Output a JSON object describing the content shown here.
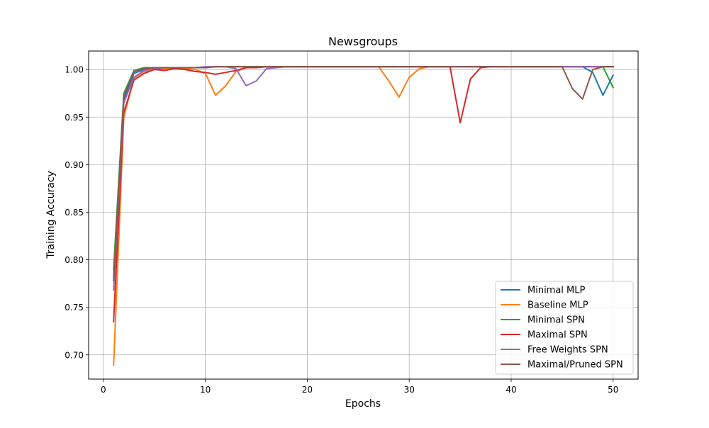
{
  "chart_data": {
    "type": "line",
    "title": "Newsgroups",
    "xlabel": "Epochs",
    "ylabel": "Training Accuracy",
    "xlim": [
      -1.45,
      52.45
    ],
    "ylim": [
      0.6745,
      1.0195
    ],
    "xticks": [
      0,
      10,
      20,
      30,
      40,
      50
    ],
    "yticks": [
      0.7,
      0.75,
      0.8,
      0.85,
      0.9,
      0.95,
      1.0
    ],
    "xtick_labels": [
      "0",
      "10",
      "20",
      "30",
      "40",
      "50"
    ],
    "ytick_labels": [
      "0.70",
      "0.75",
      "0.80",
      "0.85",
      "0.90",
      "0.95",
      "1.00"
    ],
    "grid": true,
    "legend_position": "lower right",
    "x": [
      1,
      2,
      3,
      4,
      5,
      6,
      7,
      8,
      9,
      10,
      11,
      12,
      13,
      14,
      15,
      16,
      17,
      18,
      19,
      20,
      21,
      22,
      23,
      24,
      25,
      26,
      27,
      28,
      29,
      30,
      31,
      32,
      33,
      34,
      35,
      36,
      37,
      38,
      39,
      40,
      41,
      42,
      43,
      44,
      45,
      46,
      47,
      48,
      49,
      50
    ],
    "series": [
      {
        "name": "Minimal MLP",
        "color": "#1f77b4",
        "values": [
          0.782,
          0.968,
          0.996,
          1.0,
          1.001,
          1.002,
          1.002,
          1.002,
          1.002,
          1.002,
          1.003,
          1.003,
          1.003,
          1.003,
          1.003,
          1.003,
          1.003,
          1.003,
          1.003,
          1.003,
          1.003,
          1.003,
          1.003,
          1.003,
          1.003,
          1.003,
          1.003,
          1.003,
          1.003,
          1.003,
          1.003,
          1.003,
          1.003,
          1.003,
          1.003,
          1.003,
          1.003,
          1.003,
          1.003,
          1.003,
          1.003,
          1.003,
          1.003,
          1.003,
          1.003,
          1.003,
          1.003,
          0.997,
          0.973,
          0.994
        ]
      },
      {
        "name": "Baseline MLP",
        "color": "#ff7f0e",
        "values": [
          0.689,
          0.95,
          0.991,
          0.998,
          1.0,
          1.001,
          1.001,
          1.001,
          1.0,
          0.996,
          0.973,
          0.983,
          0.998,
          1.002,
          1.002,
          1.003,
          1.003,
          1.003,
          1.003,
          1.003,
          1.003,
          1.003,
          1.003,
          1.003,
          1.003,
          1.003,
          1.003,
          0.988,
          0.971,
          0.992,
          1.001,
          1.003,
          1.003,
          1.003,
          1.003,
          1.003,
          1.003,
          1.003,
          1.003,
          1.003,
          1.003,
          1.003,
          1.003,
          1.003,
          1.003,
          1.003,
          1.003,
          1.003,
          1.003,
          1.003
        ]
      },
      {
        "name": "Minimal SPN",
        "color": "#2ca02c",
        "values": [
          0.79,
          0.975,
          0.999,
          1.002,
          1.002,
          1.002,
          1.002,
          1.002,
          1.002,
          1.002,
          1.003,
          1.003,
          1.003,
          1.003,
          1.003,
          1.003,
          1.003,
          1.003,
          1.003,
          1.003,
          1.003,
          1.003,
          1.003,
          1.003,
          1.003,
          1.003,
          1.003,
          1.003,
          1.003,
          1.003,
          1.003,
          1.003,
          1.003,
          1.003,
          1.003,
          1.003,
          1.003,
          1.003,
          1.003,
          1.003,
          1.003,
          1.003,
          1.003,
          1.003,
          1.003,
          1.003,
          1.003,
          1.003,
          1.003,
          0.981
        ]
      },
      {
        "name": "Maximal SPN",
        "color": "#d62728",
        "values": [
          0.735,
          0.955,
          0.989,
          0.996,
          1.0,
          0.999,
          1.001,
          1.0,
          0.998,
          0.997,
          0.995,
          0.997,
          0.999,
          1.002,
          1.002,
          1.003,
          1.003,
          1.003,
          1.003,
          1.003,
          1.003,
          1.003,
          1.003,
          1.003,
          1.003,
          1.003,
          1.003,
          1.003,
          1.003,
          1.003,
          1.003,
          1.003,
          1.003,
          1.003,
          0.944,
          0.99,
          1.002,
          1.003,
          1.003,
          1.003,
          1.003,
          1.003,
          1.003,
          1.003,
          1.003,
          1.003,
          1.003,
          1.003,
          1.003,
          1.003
        ]
      },
      {
        "name": "Free Weights SPN",
        "color": "#9467bd",
        "values": [
          0.768,
          0.965,
          0.992,
          0.999,
          1.001,
          1.002,
          1.002,
          1.002,
          1.002,
          1.003,
          1.003,
          1.003,
          1.001,
          0.983,
          0.988,
          1.001,
          1.002,
          1.003,
          1.003,
          1.003,
          1.003,
          1.003,
          1.003,
          1.003,
          1.003,
          1.003,
          1.003,
          1.003,
          1.003,
          1.003,
          1.003,
          1.003,
          1.003,
          1.003,
          1.003,
          1.003,
          1.003,
          1.003,
          1.003,
          1.003,
          1.003,
          1.003,
          1.003,
          1.003,
          1.003,
          1.003,
          1.003,
          1.003,
          1.003,
          1.003
        ]
      },
      {
        "name": "Maximal/Pruned SPN",
        "color": "#8c564b",
        "values": [
          0.778,
          0.972,
          0.998,
          1.001,
          1.002,
          1.002,
          1.002,
          1.002,
          1.002,
          1.002,
          1.003,
          1.003,
          1.003,
          1.003,
          1.003,
          1.003,
          1.003,
          1.003,
          1.003,
          1.003,
          1.003,
          1.003,
          1.003,
          1.003,
          1.003,
          1.003,
          1.003,
          1.003,
          1.003,
          1.003,
          1.003,
          1.003,
          1.003,
          1.003,
          1.003,
          1.003,
          1.003,
          1.003,
          1.003,
          1.003,
          1.003,
          1.003,
          1.003,
          1.003,
          1.003,
          0.98,
          0.969,
          1.0,
          1.003,
          1.003
        ]
      }
    ]
  }
}
